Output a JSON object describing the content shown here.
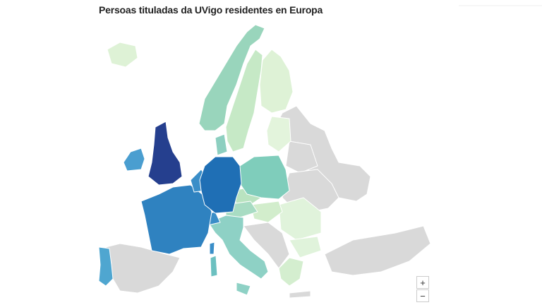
{
  "title": "Persoas tituladas da UVigo residentes en Europa",
  "zoom_controls": {
    "zoom_in": "+",
    "zoom_out": "−"
  }
}
